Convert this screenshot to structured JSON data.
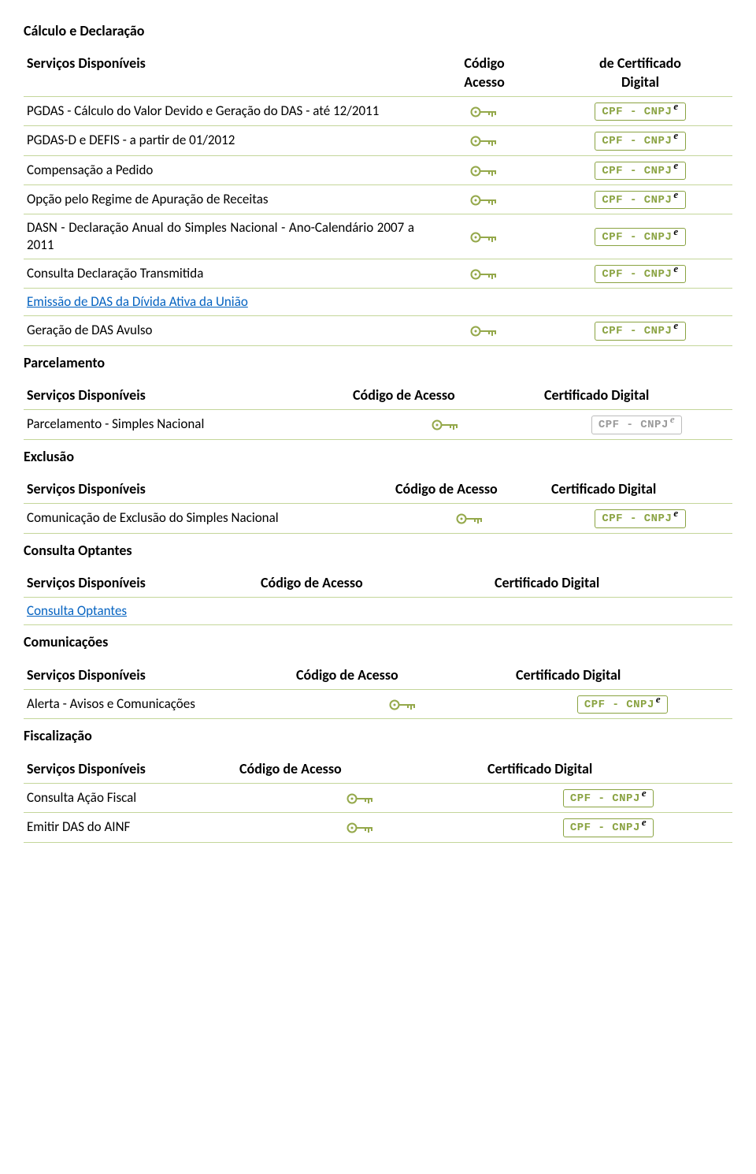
{
  "colors": {
    "row_border": "#c4d69a",
    "badge_border_green": "#8aa342",
    "badge_text_green": "#8aa342",
    "badge_border_muted": "#bcbcbc",
    "badge_text_muted": "#9a9a9a",
    "key_outline": "#94a84a",
    "link": "#0563c1",
    "background": "#ffffff",
    "text": "#000000"
  },
  "header_labels": {
    "servicos": "Serviços Disponíveis",
    "codigo_col": "Código\nAcesso",
    "digital_col_prefix": "de",
    "digital_col": "Certificado\nDigital",
    "codigo_de_acesso": "Código de Acesso",
    "cert_digital": "Certificado Digital"
  },
  "badge_text": "CPF - CNPJ",
  "badge_sup": "e",
  "sections": {
    "calc": {
      "title": "Cálculo e Declaração",
      "rows": [
        {
          "label": "PGDAS - Cálculo do Valor Devido e Geração do DAS - até 12/2011",
          "key": true,
          "cert": "green"
        },
        {
          "label": "PGDAS-D e DEFIS - a partir de 01/2012",
          "key": true,
          "cert": "green"
        },
        {
          "label": "Compensação a Pedido",
          "key": true,
          "cert": "green"
        },
        {
          "label": "Opção pelo Regime de Apuração de Receitas",
          "key": true,
          "cert": "green"
        },
        {
          "label": "DASN - Declaração Anual do Simples Nacional - Ano-Calendário 2007 a 2011",
          "key": true,
          "cert": "green"
        },
        {
          "label": "Consulta Declaração Transmitida",
          "key": true,
          "cert": "green"
        },
        {
          "label": "Emissão de DAS da Dívida Ativa da União",
          "key": false,
          "cert": null,
          "link": true
        },
        {
          "label": "Geração de DAS Avulso",
          "key": true,
          "cert": "green"
        }
      ]
    },
    "parcel": {
      "title": "Parcelamento",
      "rows": [
        {
          "label": "Parcelamento - Simples Nacional",
          "key": true,
          "cert": "muted"
        }
      ]
    },
    "exclusao": {
      "title": "Exclusão",
      "rows": [
        {
          "label": "Comunicação de Exclusão do Simples Nacional",
          "key": true,
          "cert": "green"
        }
      ]
    },
    "consulta": {
      "title": "Consulta Optantes",
      "rows": [
        {
          "label": "Consulta Optantes",
          "key": false,
          "cert": null,
          "link": true
        }
      ]
    },
    "comunic": {
      "title": "Comunicações",
      "rows": [
        {
          "label": "Alerta - Avisos e Comunicações",
          "key": true,
          "cert": "green"
        }
      ]
    },
    "fiscal": {
      "title": "Fiscalização",
      "rows": [
        {
          "label": "Consulta Ação Fiscal",
          "key": true,
          "cert": "green"
        },
        {
          "label": "Emitir DAS do AINF",
          "key": true,
          "cert": "green"
        }
      ]
    }
  }
}
